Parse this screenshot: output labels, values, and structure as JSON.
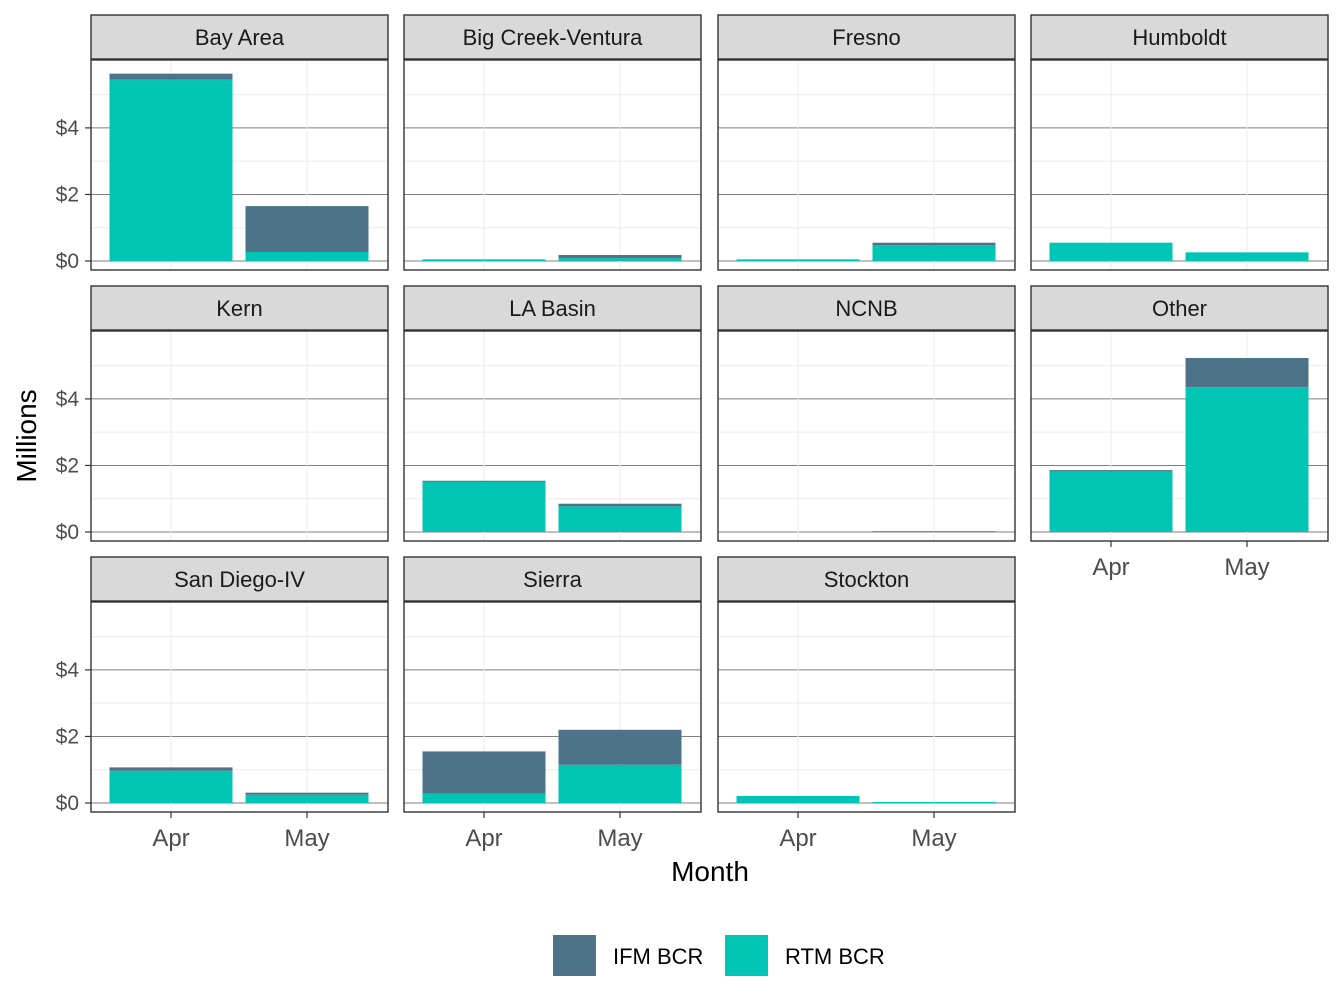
{
  "chart_data": {
    "type": "bar",
    "stacked": true,
    "xlabel": "Month",
    "ylabel": "Millions",
    "ylim": [
      0,
      5.8
    ],
    "yticks": [
      0,
      2,
      4
    ],
    "ytick_labels": [
      "$0",
      "$2",
      "$4"
    ],
    "categories": [
      "Apr",
      "May"
    ],
    "legend_position": "bottom",
    "series_names": [
      "IFM BCR",
      "RTM BCR"
    ],
    "colors": {
      "IFM BCR": "#4e7388",
      "RTM BCR": "#00c5b5"
    },
    "grid": true,
    "panels": [
      {
        "title": "Bay Area",
        "rtm": [
          5.45,
          0.27
        ],
        "ifm": [
          0.18,
          1.38
        ]
      },
      {
        "title": "Big Creek-Ventura",
        "rtm": [
          0.05,
          0.08
        ],
        "ifm": [
          0.0,
          0.1
        ]
      },
      {
        "title": "Fresno",
        "rtm": [
          0.05,
          0.47
        ],
        "ifm": [
          0.0,
          0.08
        ]
      },
      {
        "title": "Humboldt",
        "rtm": [
          0.55,
          0.26
        ],
        "ifm": [
          0.0,
          0.0
        ]
      },
      {
        "title": "Kern",
        "rtm": [
          0.0,
          0.0
        ],
        "ifm": [
          0.0,
          0.0
        ]
      },
      {
        "title": "LA Basin",
        "rtm": [
          1.52,
          0.77
        ],
        "ifm": [
          0.02,
          0.08
        ]
      },
      {
        "title": "NCNB",
        "rtm": [
          0.0,
          0.03
        ],
        "ifm": [
          0.0,
          0.0
        ]
      },
      {
        "title": "Other",
        "rtm": [
          1.82,
          4.35
        ],
        "ifm": [
          0.04,
          0.88
        ]
      },
      {
        "title": "San Diego-IV",
        "rtm": [
          0.97,
          0.25
        ],
        "ifm": [
          0.1,
          0.06
        ]
      },
      {
        "title": "Sierra",
        "rtm": [
          0.28,
          1.15
        ],
        "ifm": [
          1.27,
          1.05
        ]
      },
      {
        "title": "Stockton",
        "rtm": [
          0.21,
          0.03
        ],
        "ifm": [
          0.0,
          0.0
        ]
      }
    ]
  }
}
